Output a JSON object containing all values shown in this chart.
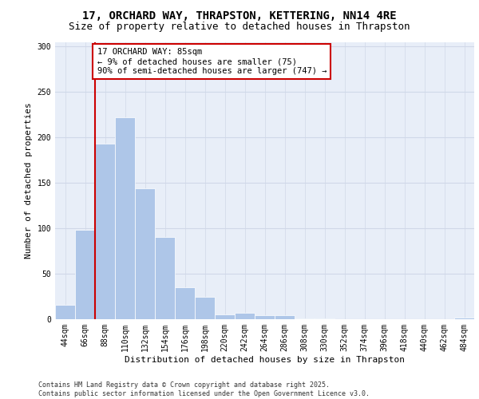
{
  "title_line1": "17, ORCHARD WAY, THRAPSTON, KETTERING, NN14 4RE",
  "title_line2": "Size of property relative to detached houses in Thrapston",
  "xlabel": "Distribution of detached houses by size in Thrapston",
  "ylabel": "Number of detached properties",
  "categories": [
    "44sqm",
    "66sqm",
    "88sqm",
    "110sqm",
    "132sqm",
    "154sqm",
    "176sqm",
    "198sqm",
    "220sqm",
    "242sqm",
    "264sqm",
    "286sqm",
    "308sqm",
    "330sqm",
    "352sqm",
    "374sqm",
    "396sqm",
    "418sqm",
    "440sqm",
    "462sqm",
    "484sqm"
  ],
  "values": [
    16,
    98,
    193,
    222,
    144,
    90,
    35,
    25,
    5,
    7,
    4,
    4,
    1,
    1,
    0,
    0,
    0,
    0,
    0,
    0,
    2
  ],
  "bar_color": "#aec6e8",
  "vline_x": 1.5,
  "vline_color": "#cc0000",
  "annotation_text": "17 ORCHARD WAY: 85sqm\n← 9% of detached houses are smaller (75)\n90% of semi-detached houses are larger (747) →",
  "annotation_box_color": "#ffffff",
  "annotation_box_edgecolor": "#cc0000",
  "ylim": [
    0,
    305
  ],
  "yticks": [
    0,
    50,
    100,
    150,
    200,
    250,
    300
  ],
  "grid_color": "#d0d8e8",
  "bg_color": "#e8eef8",
  "footnote": "Contains HM Land Registry data © Crown copyright and database right 2025.\nContains public sector information licensed under the Open Government Licence v3.0.",
  "title_fontsize": 10,
  "subtitle_fontsize": 9,
  "xlabel_fontsize": 8,
  "ylabel_fontsize": 8,
  "tick_fontsize": 7,
  "annot_fontsize": 7.5,
  "footnote_fontsize": 6
}
